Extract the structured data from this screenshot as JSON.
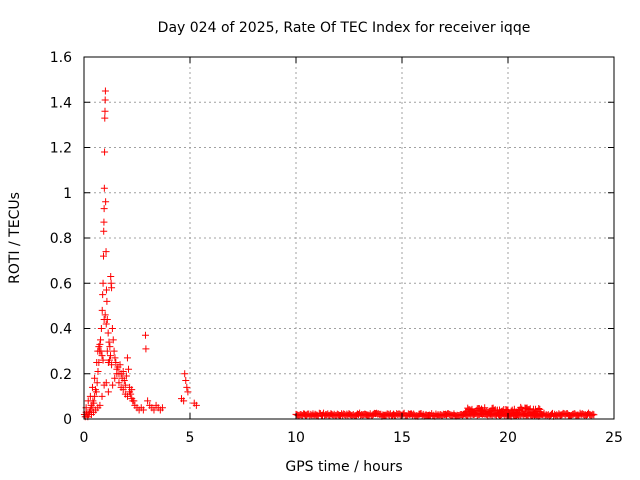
{
  "chart_data": {
    "type": "scatter",
    "title": "Day 024 of 2025, Rate Of TEC Index for receiver iqqe",
    "xlabel": "GPS time / hours",
    "ylabel": "ROTI / TECUs",
    "xlim": [
      0,
      25
    ],
    "ylim": [
      0,
      1.6
    ],
    "grid": true,
    "marker": "+",
    "color": "#ff0000",
    "xticks": [
      0,
      5,
      10,
      15,
      20,
      25
    ],
    "xtick_labels": [
      "0",
      "5",
      "10",
      "15",
      "20",
      "25"
    ],
    "yticks": [
      0,
      0.2,
      0.4,
      0.6,
      0.8,
      1.0,
      1.2,
      1.4,
      1.6
    ],
    "ytick_labels": [
      "0",
      "0.2",
      "0.4",
      "0.6",
      "0.8",
      "1",
      "1.2",
      "1.4",
      "1.6"
    ],
    "points": [
      [
        0.02,
        0.02
      ],
      [
        0.06,
        0.01
      ],
      [
        0.1,
        0.03
      ],
      [
        0.14,
        0.02
      ],
      [
        0.18,
        0.01
      ],
      [
        0.22,
        0.02
      ],
      [
        0.26,
        0.03
      ],
      [
        0.3,
        0.04
      ],
      [
        0.34,
        0.06
      ],
      [
        0.38,
        0.05
      ],
      [
        0.42,
        0.08
      ],
      [
        0.46,
        0.07
      ],
      [
        0.5,
        0.1
      ],
      [
        0.54,
        0.13
      ],
      [
        0.58,
        0.12
      ],
      [
        0.62,
        0.16
      ],
      [
        0.66,
        0.21
      ],
      [
        0.7,
        0.25
      ],
      [
        0.74,
        0.3
      ],
      [
        0.78,
        0.35
      ],
      [
        0.82,
        0.4
      ],
      [
        0.86,
        0.48
      ],
      [
        0.88,
        0.55
      ],
      [
        0.9,
        0.6
      ],
      [
        0.92,
        0.72
      ],
      [
        0.93,
        0.83
      ],
      [
        0.94,
        0.87
      ],
      [
        0.95,
        0.93
      ],
      [
        0.96,
        1.02
      ],
      [
        0.97,
        1.18
      ],
      [
        0.98,
        1.33
      ],
      [
        0.99,
        1.36
      ],
      [
        1.0,
        1.41
      ],
      [
        1.01,
        1.45
      ],
      [
        1.02,
        0.96
      ],
      [
        1.04,
        0.74
      ],
      [
        1.06,
        0.57
      ],
      [
        1.08,
        0.52
      ],
      [
        1.1,
        0.44
      ],
      [
        1.14,
        0.38
      ],
      [
        1.18,
        0.34
      ],
      [
        1.22,
        0.32
      ],
      [
        1.26,
        0.63
      ],
      [
        1.28,
        0.6
      ],
      [
        1.3,
        0.58
      ],
      [
        1.34,
        0.4
      ],
      [
        1.38,
        0.35
      ],
      [
        1.42,
        0.3
      ],
      [
        1.46,
        0.27
      ],
      [
        1.5,
        0.25
      ],
      [
        1.55,
        0.22
      ],
      [
        1.6,
        0.23
      ],
      [
        1.65,
        0.2
      ],
      [
        1.7,
        0.24
      ],
      [
        1.75,
        0.2
      ],
      [
        1.8,
        0.18
      ],
      [
        1.85,
        0.21
      ],
      [
        1.9,
        0.17
      ],
      [
        1.95,
        0.15
      ],
      [
        2.0,
        0.19
      ],
      [
        2.05,
        0.27
      ],
      [
        2.1,
        0.22
      ],
      [
        2.15,
        0.14
      ],
      [
        2.2,
        0.11
      ],
      [
        2.25,
        0.09
      ],
      [
        2.3,
        0.08
      ],
      [
        2.4,
        0.06
      ],
      [
        2.5,
        0.05
      ],
      [
        2.6,
        0.04
      ],
      [
        2.7,
        0.05
      ],
      [
        2.8,
        0.04
      ],
      [
        2.9,
        0.37
      ],
      [
        2.92,
        0.31
      ],
      [
        3.0,
        0.08
      ],
      [
        3.1,
        0.06
      ],
      [
        3.2,
        0.05
      ],
      [
        3.3,
        0.04
      ],
      [
        3.4,
        0.06
      ],
      [
        3.5,
        0.05
      ],
      [
        3.6,
        0.04
      ],
      [
        3.7,
        0.05
      ],
      [
        4.6,
        0.09
      ],
      [
        4.7,
        0.08
      ],
      [
        4.75,
        0.2
      ],
      [
        4.8,
        0.17
      ],
      [
        4.85,
        0.14
      ],
      [
        4.9,
        0.12
      ],
      [
        5.2,
        0.07
      ],
      [
        5.3,
        0.06
      ],
      [
        0.1,
        0.05
      ],
      [
        0.2,
        0.08
      ],
      [
        0.3,
        0.1
      ],
      [
        0.4,
        0.14
      ],
      [
        0.5,
        0.18
      ],
      [
        0.6,
        0.25
      ],
      [
        0.65,
        0.3
      ],
      [
        0.7,
        0.32
      ],
      [
        0.75,
        0.33
      ],
      [
        0.8,
        0.3
      ],
      [
        0.85,
        0.28
      ],
      [
        0.9,
        0.26
      ],
      [
        0.95,
        0.44
      ],
      [
        1.0,
        0.46
      ],
      [
        1.05,
        0.42
      ],
      [
        1.1,
        0.3
      ],
      [
        1.15,
        0.25
      ],
      [
        1.2,
        0.26
      ],
      [
        1.25,
        0.28
      ],
      [
        1.3,
        0.24
      ],
      [
        0.35,
        0.02
      ],
      [
        0.45,
        0.03
      ],
      [
        0.55,
        0.04
      ],
      [
        0.65,
        0.05
      ],
      [
        0.75,
        0.06
      ],
      [
        0.85,
        0.1
      ],
      [
        0.95,
        0.15
      ],
      [
        1.05,
        0.16
      ],
      [
        1.15,
        0.12
      ],
      [
        1.35,
        0.15
      ],
      [
        1.45,
        0.18
      ],
      [
        1.55,
        0.2
      ],
      [
        1.65,
        0.16
      ],
      [
        1.75,
        0.14
      ],
      [
        1.85,
        0.13
      ],
      [
        1.95,
        0.11
      ],
      [
        2.05,
        0.1
      ],
      [
        2.15,
        0.12
      ],
      [
        2.25,
        0.13
      ],
      [
        2.35,
        0.08
      ]
    ],
    "dense_bands": [
      {
        "x_start": 10.0,
        "x_end": 24.0,
        "step": 0.1,
        "y_base": 0.018,
        "y_amplitude": 0.012
      },
      {
        "x_start": 18.0,
        "x_end": 21.5,
        "step": 0.1,
        "y_base": 0.035,
        "y_amplitude": 0.025
      }
    ]
  }
}
